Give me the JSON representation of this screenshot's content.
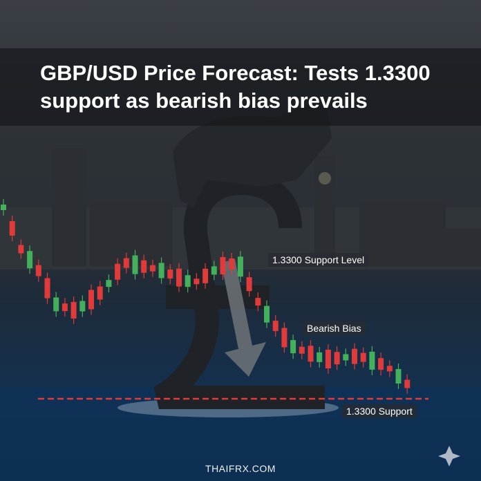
{
  "header": {
    "title": "GBP/USD Price Forecast: Tests 1.3300 support as bearish bias prevails"
  },
  "labels": {
    "support_level": "1.3300 Support Level",
    "bearish_bias": "Bearish Bias",
    "support": "1.3300 Support"
  },
  "footer": {
    "site": "THAIFRX.COM"
  }
}
